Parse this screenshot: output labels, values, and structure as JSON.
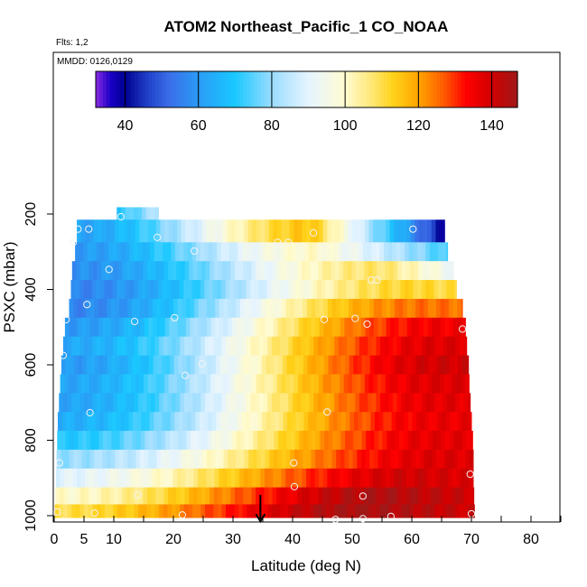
{
  "chart_data": {
    "type": "heatmap",
    "title": "ATOM2 Northeast_Pacific_1 CO_NOAA",
    "annotations": {
      "flights": "Flts: 1,2",
      "dates": "MMDD: 0126,0129"
    },
    "xlabel": "Latitude (deg N)",
    "ylabel": "PSXC (mbar)",
    "xlim": [
      0,
      85
    ],
    "ylim": [
      1000,
      0
    ],
    "x_tick_labels": [
      "0",
      "5",
      "10",
      "20",
      "30",
      "40",
      "50",
      "60",
      "70",
      "80"
    ],
    "x_ticks": [
      0,
      5,
      10,
      20,
      30,
      40,
      50,
      60,
      70,
      80
    ],
    "x_minor_ticks": [
      15,
      25,
      35,
      45,
      55,
      65,
      75,
      85
    ],
    "y_ticks": [
      200,
      400,
      600,
      800,
      1000
    ],
    "y_tick_labels": [
      "200",
      "400",
      "600",
      "800",
      "1000"
    ],
    "colorbar": {
      "min": 32,
      "max": 147,
      "ticks": [
        40,
        60,
        80,
        100,
        120,
        140
      ],
      "tick_labels": [
        "40",
        "60",
        "80",
        "100",
        "120",
        "140"
      ],
      "colors": [
        {
          "v": 32,
          "c": "#8a2be2"
        },
        {
          "v": 36,
          "c": "#1a00c8"
        },
        {
          "v": 40,
          "c": "#000090"
        },
        {
          "v": 46,
          "c": "#1f3fc8"
        },
        {
          "v": 52,
          "c": "#3a6ee8"
        },
        {
          "v": 60,
          "c": "#2a9bf5"
        },
        {
          "v": 70,
          "c": "#1ac8ff"
        },
        {
          "v": 80,
          "c": "#9adcff"
        },
        {
          "v": 90,
          "c": "#e6f4ff"
        },
        {
          "v": 100,
          "c": "#fffbd0"
        },
        {
          "v": 107,
          "c": "#ffe87a"
        },
        {
          "v": 113,
          "c": "#ffd21a"
        },
        {
          "v": 120,
          "c": "#ffa500"
        },
        {
          "v": 127,
          "c": "#ff5a00"
        },
        {
          "v": 133,
          "c": "#ff0000"
        },
        {
          "v": 140,
          "c": "#d00000"
        },
        {
          "v": 147,
          "c": "#a01818"
        }
      ]
    },
    "rows": [
      {
        "p": 200,
        "lat0": 10.5,
        "lat1": 17.5,
        "start": 70,
        "end": 85,
        "dip": 0
      },
      {
        "p": 250,
        "lat0": 3.8,
        "lat1": 65.5,
        "start": 62,
        "end": 38,
        "peak": 115,
        "peakLat": 43
      },
      {
        "p": 300,
        "lat0": 3.5,
        "lat1": 66.0,
        "start": 60,
        "end": 72,
        "peak": 100,
        "peakLat": 44
      },
      {
        "p": 350,
        "lat0": 3.0,
        "lat1": 67.0,
        "start": 58,
        "end": 92,
        "peak": 108,
        "peakLat": 55
      },
      {
        "p": 400,
        "lat0": 2.8,
        "lat1": 67.5,
        "start": 56,
        "end": 110,
        "peak": 112,
        "peakLat": 60
      },
      {
        "p": 450,
        "lat0": 2.5,
        "lat1": 68.5,
        "start": 56,
        "end": 125,
        "peak": 125,
        "peakLat": 62
      },
      {
        "p": 500,
        "lat0": 1.8,
        "lat1": 69.0,
        "start": 60,
        "end": 135,
        "peak": 135,
        "peakLat": 65
      },
      {
        "p": 550,
        "lat0": 1.5,
        "lat1": 69.2,
        "start": 63,
        "end": 138,
        "peak": 138,
        "peakLat": 65
      },
      {
        "p": 600,
        "lat0": 1.2,
        "lat1": 69.5,
        "start": 60,
        "end": 140,
        "peak": 140,
        "peakLat": 65
      },
      {
        "p": 650,
        "lat0": 1.0,
        "lat1": 69.6,
        "start": 62,
        "end": 138,
        "peak": 138,
        "peakLat": 65
      },
      {
        "p": 700,
        "lat0": 0.8,
        "lat1": 69.8,
        "start": 62,
        "end": 137,
        "peak": 137,
        "peakLat": 65
      },
      {
        "p": 750,
        "lat0": 0.6,
        "lat1": 70.0,
        "start": 64,
        "end": 136,
        "peak": 136,
        "peakLat": 65
      },
      {
        "p": 800,
        "lat0": 0.5,
        "lat1": 70.2,
        "start": 70,
        "end": 137,
        "peak": 137,
        "peakLat": 65
      },
      {
        "p": 850,
        "lat0": 0.4,
        "lat1": 70.3,
        "start": 80,
        "end": 138,
        "peak": 138,
        "peakLat": 65
      },
      {
        "p": 900,
        "lat0": 0.3,
        "lat1": 70.3,
        "start": 90,
        "end": 138,
        "peak": 140,
        "peakLat": 60
      },
      {
        "p": 950,
        "lat0": 0.2,
        "lat1": 70.4,
        "start": 100,
        "end": 140,
        "peak": 145,
        "peakLat": 55
      },
      {
        "p": 990,
        "lat0": 0.1,
        "lat1": 70.5,
        "start": 110,
        "end": 140,
        "peak": 146,
        "peakLat": 52
      }
    ],
    "points": [
      {
        "lat": 11.2,
        "p": 207
      },
      {
        "lat": 4.0,
        "p": 240
      },
      {
        "lat": 5.8,
        "p": 240
      },
      {
        "lat": 60.2,
        "p": 240
      },
      {
        "lat": 43.5,
        "p": 250
      },
      {
        "lat": 17.3,
        "p": 262
      },
      {
        "lat": 27.5,
        "p": 262
      },
      {
        "lat": 3.2,
        "p": 275
      },
      {
        "lat": 37.5,
        "p": 275
      },
      {
        "lat": 39.3,
        "p": 275
      },
      {
        "lat": 49.8,
        "p": 285
      },
      {
        "lat": 23.5,
        "p": 298
      },
      {
        "lat": 9.2,
        "p": 347
      },
      {
        "lat": 53.2,
        "p": 375
      },
      {
        "lat": 54.2,
        "p": 375
      },
      {
        "lat": 5.5,
        "p": 440
      },
      {
        "lat": 20.2,
        "p": 475
      },
      {
        "lat": 2.0,
        "p": 480
      },
      {
        "lat": 13.5,
        "p": 485
      },
      {
        "lat": 45.3,
        "p": 480
      },
      {
        "lat": 50.5,
        "p": 477
      },
      {
        "lat": 52.5,
        "p": 492
      },
      {
        "lat": 68.5,
        "p": 505
      },
      {
        "lat": 1.5,
        "p": 575
      },
      {
        "lat": 24.8,
        "p": 597
      },
      {
        "lat": 22.0,
        "p": 628
      },
      {
        "lat": 6.0,
        "p": 727
      },
      {
        "lat": 45.8,
        "p": 725
      },
      {
        "lat": 0.9,
        "p": 860
      },
      {
        "lat": 40.2,
        "p": 860
      },
      {
        "lat": 69.8,
        "p": 890
      },
      {
        "lat": 40.3,
        "p": 923
      },
      {
        "lat": 14.0,
        "p": 945
      },
      {
        "lat": 51.8,
        "p": 948
      },
      {
        "lat": 0.5,
        "p": 990
      },
      {
        "lat": 6.8,
        "p": 993
      },
      {
        "lat": 21.5,
        "p": 998
      },
      {
        "lat": 56.5,
        "p": 1002
      },
      {
        "lat": 70.0,
        "p": 995
      },
      {
        "lat": 47.2,
        "p": 1010
      },
      {
        "lat": 51.8,
        "p": 1008
      }
    ],
    "arrow": {
      "lat": 34.6,
      "p_from": 945,
      "p_to": 1015
    }
  }
}
